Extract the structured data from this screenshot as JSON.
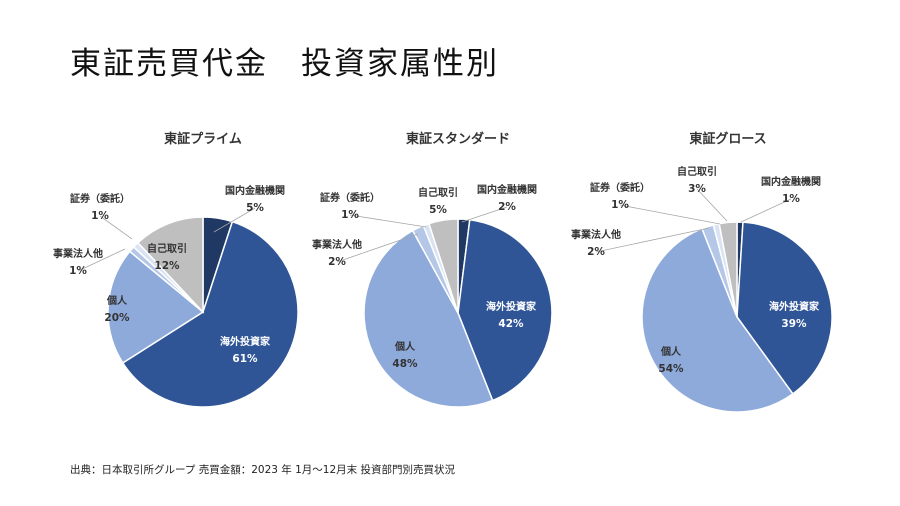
{
  "title": "東証売買代金　投資家属性別",
  "source": "出典：日本取引所グループ 売買金額：2023 年 1月～12月末 投資部門別売買状況",
  "colors": {
    "domestic_financial": "#1f3864",
    "overseas": "#2f5597",
    "individual": "#8eaadb",
    "corporate": "#b4c7e7",
    "securities": "#dae3f3",
    "self": "#bfbfbf"
  },
  "chart_data": [
    {
      "type": "pie",
      "title": "東証プライム",
      "slices": [
        {
          "label": "国内金融機関",
          "value": 5,
          "value_label": "5%"
        },
        {
          "label": "海外投資家",
          "value": 61,
          "value_label": "61%"
        },
        {
          "label": "個人",
          "value": 20,
          "value_label": "20%"
        },
        {
          "label": "事業法人他",
          "value": 1,
          "value_label": "1%"
        },
        {
          "label": "証券（委託）",
          "value": 1,
          "value_label": "1%"
        },
        {
          "label": "自己取引",
          "value": 12,
          "value_label": "12%"
        }
      ]
    },
    {
      "type": "pie",
      "title": "東証スタンダード",
      "slices": [
        {
          "label": "国内金融機関",
          "value": 2,
          "value_label": "2%"
        },
        {
          "label": "海外投資家",
          "value": 42,
          "value_label": "42%"
        },
        {
          "label": "個人",
          "value": 48,
          "value_label": "48%"
        },
        {
          "label": "事業法人他",
          "value": 2,
          "value_label": "2%"
        },
        {
          "label": "証券（委託）",
          "value": 1,
          "value_label": "1%"
        },
        {
          "label": "自己取引",
          "value": 5,
          "value_label": "5%"
        }
      ]
    },
    {
      "type": "pie",
      "title": "東証グロース",
      "slices": [
        {
          "label": "国内金融機関",
          "value": 1,
          "value_label": "1%"
        },
        {
          "label": "海外投資家",
          "value": 39,
          "value_label": "39%"
        },
        {
          "label": "個人",
          "value": 54,
          "value_label": "54%"
        },
        {
          "label": "事業法人他",
          "value": 2,
          "value_label": "2%"
        },
        {
          "label": "証券（委託）",
          "value": 1,
          "value_label": "1%"
        },
        {
          "label": "自己取引",
          "value": 3,
          "value_label": "3%"
        }
      ]
    }
  ]
}
